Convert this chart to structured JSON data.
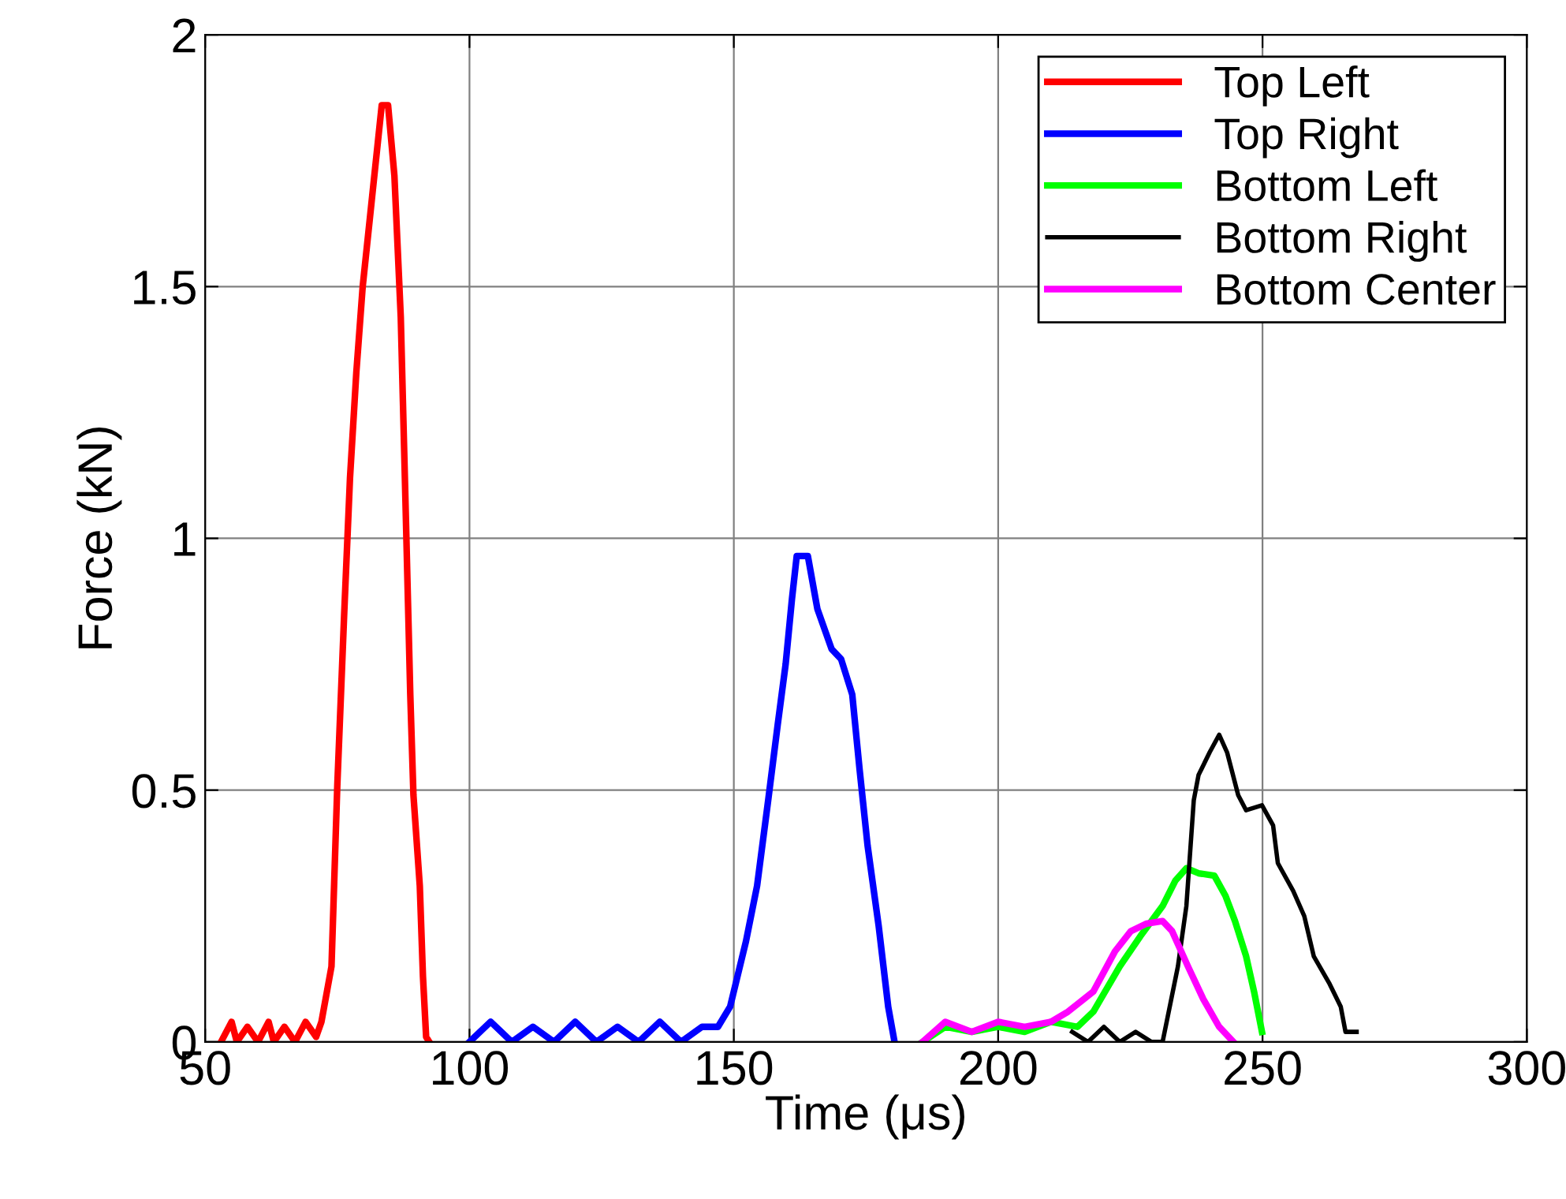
{
  "chart_data": {
    "type": "line",
    "xlabel": "Time (μs)",
    "ylabel": "Force (kN)",
    "xlim": [
      50,
      300
    ],
    "ylim": [
      0,
      2
    ],
    "xticks": [
      50,
      100,
      150,
      200,
      250,
      300
    ],
    "yticks": [
      0,
      0.5,
      1,
      1.5,
      2
    ],
    "grid": true,
    "legend": "top right",
    "line_style": "solid",
    "series": [
      {
        "name": "Top Left",
        "color": "#ff0000",
        "x": [
          53,
          55,
          56,
          58,
          60,
          62,
          63,
          65,
          67,
          69,
          71,
          72,
          73.9,
          75,
          76.3,
          77.4,
          78.6,
          79.8,
          81.6,
          83.4,
          84.6,
          85.8,
          87,
          87.9,
          88.8,
          89.4,
          90.6,
          91.2,
          91.8,
          92.4
        ],
        "values": [
          0,
          0.04,
          0,
          0.03,
          0,
          0.04,
          0,
          0.03,
          0,
          0.04,
          0.01,
          0.04,
          0.15,
          0.51,
          0.85,
          1.12,
          1.33,
          1.5,
          1.68,
          1.86,
          1.86,
          1.72,
          1.44,
          1.07,
          0.69,
          0.49,
          0.31,
          0.13,
          0.01,
          0
        ]
      },
      {
        "name": "Top Right",
        "color": "#0000ff",
        "x": [
          100,
          104,
          108,
          112,
          116,
          120,
          124,
          128,
          132,
          136,
          140,
          144,
          147,
          149.3,
          152.3,
          154.4,
          156.5,
          158.3,
          159.8,
          161,
          161.9,
          164,
          165.8,
          168.5,
          170.3,
          172.4,
          173.8,
          175.3,
          177.4,
          179.2,
          180.4
        ],
        "values": [
          0,
          0.04,
          0,
          0.03,
          0,
          0.04,
          0,
          0.03,
          0,
          0.04,
          0,
          0.03,
          0.03,
          0.07,
          0.2,
          0.31,
          0.48,
          0.63,
          0.75,
          0.88,
          0.965,
          0.965,
          0.86,
          0.78,
          0.76,
          0.69,
          0.54,
          0.39,
          0.23,
          0.07,
          0
        ]
      },
      {
        "name": "Bottom Left",
        "color": "#00ff00",
        "x": [
          185.7,
          190,
          195,
          200,
          205,
          210,
          215,
          218,
          223,
          226.9,
          231.1,
          233.5,
          235.6,
          237.9,
          240.9,
          243,
          244.8,
          246.9,
          248.4,
          249.9
        ],
        "values": [
          0,
          0.03,
          0.02,
          0.03,
          0.02,
          0.04,
          0.03,
          0.06,
          0.15,
          0.21,
          0.27,
          0.32,
          0.345,
          0.335,
          0.33,
          0.29,
          0.24,
          0.17,
          0.1,
          0.02
        ]
      },
      {
        "name": "Bottom Right",
        "color": "#000000",
        "x": [
          214,
          217,
          220,
          223,
          226,
          229,
          231.1,
          234,
          235.6,
          237,
          237.9,
          240,
          241.8,
          243.3,
          245.4,
          246.9,
          249.9,
          252,
          252.9,
          255.8,
          257.9,
          259.7,
          262.7,
          264.8,
          265.7,
          267.8
        ],
        "values": [
          0.02,
          0,
          0.03,
          0,
          0.02,
          0,
          0,
          0.15,
          0.27,
          0.48,
          0.53,
          0.575,
          0.61,
          0.575,
          0.49,
          0.46,
          0.47,
          0.43,
          0.355,
          0.3,
          0.25,
          0.17,
          0.115,
          0.07,
          0.02,
          0.02
        ]
      },
      {
        "name": "Bottom Center",
        "color": "#ff00ff",
        "x": [
          185.7,
          190,
          195,
          200,
          205,
          210,
          213.2,
          218,
          222.1,
          225.1,
          228.1,
          231.1,
          232.9,
          235.9,
          238.8,
          241.8,
          244.5
        ],
        "values": [
          0,
          0.04,
          0.02,
          0.04,
          0.03,
          0.04,
          0.06,
          0.1,
          0.18,
          0.22,
          0.235,
          0.24,
          0.22,
          0.15,
          0.085,
          0.03,
          0
        ]
      }
    ]
  }
}
